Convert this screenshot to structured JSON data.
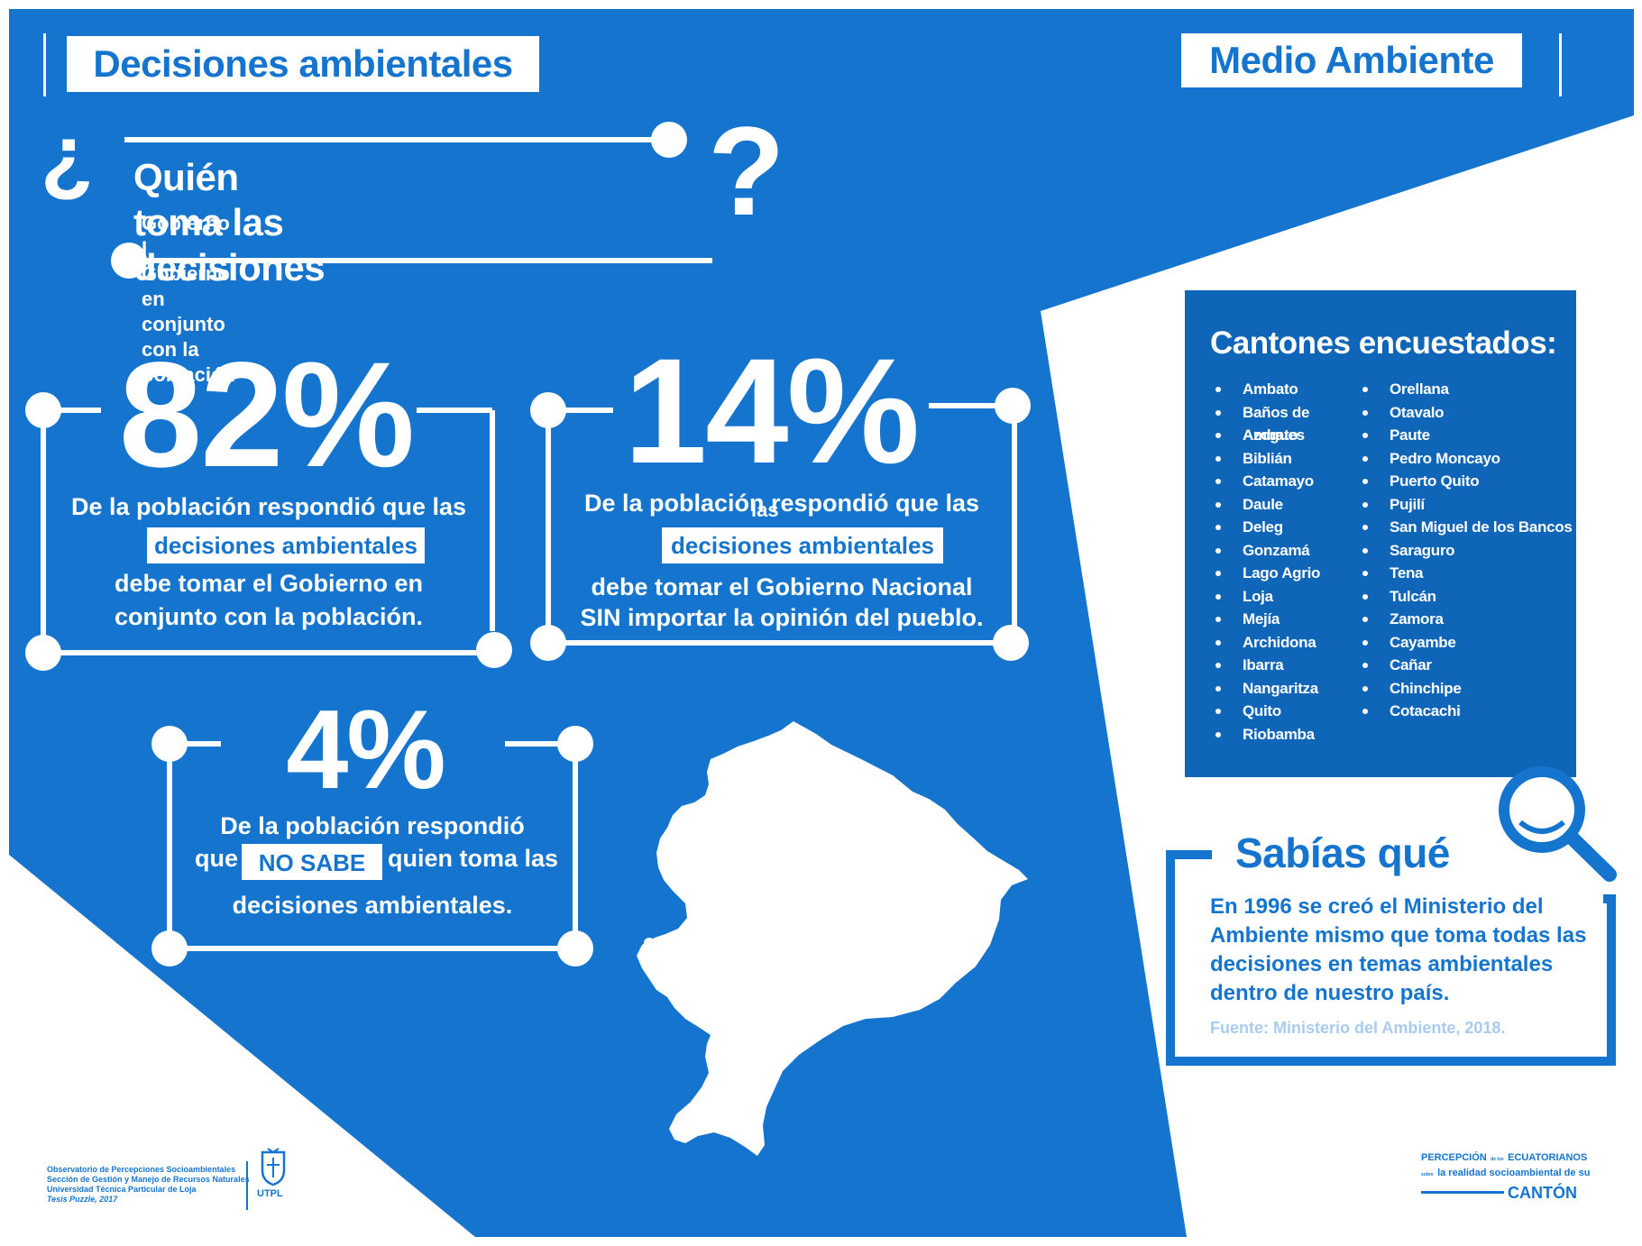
{
  "header": {
    "title": "Decisiones ambientales",
    "category": "Medio  Ambiente"
  },
  "question": {
    "open_mark": "¿",
    "close_mark": "?",
    "title": "Quién toma las decisiones",
    "subtitle": "Gobierno I Gobierno en conjunto con la población"
  },
  "stats": {
    "s82": {
      "value": "82%",
      "line1": "De la población respondió que las",
      "highlight": "decisiones ambientales",
      "line3": "debe tomar el Gobierno en",
      "line4": "conjunto con la población."
    },
    "s14": {
      "value": "14%",
      "line1": "De la población respondió que las",
      "overlap": "las",
      "highlight": "decisiones ambientales",
      "line3": "debe tomar el Gobierno Nacional",
      "line4": "SIN importar la opinión del pueblo."
    },
    "s4": {
      "value": "4%",
      "line1": "De la población respondió",
      "line2_pre": "que",
      "highlight": "NO SABE",
      "line2_post": "quien toma las",
      "line3": "decisiones ambientales."
    }
  },
  "cantones": {
    "title": "Cantones encuestados:",
    "col1": [
      "Ambato",
      "Baños de Ambato",
      "Azogues",
      "Biblián",
      "Catamayo",
      "Daule",
      "Deleg",
      "Gonzamá",
      "Lago Agrio",
      "Loja",
      "Mejía",
      "Archidona",
      "Ibarra",
      "Nangaritza",
      "Quito",
      "Riobamba"
    ],
    "col2": [
      "Orellana",
      "Otavalo",
      "Paute",
      "Pedro Moncayo",
      "Puerto Quito",
      "Pujilí",
      "San Miguel de los Bancos",
      "Saraguro",
      "Tena",
      "Tulcán",
      "Zamora",
      "Cayambe",
      "Cañar",
      "Chinchipe",
      "Cotacachi"
    ]
  },
  "sabias": {
    "title": "Sabías qué",
    "lines": [
      "En 1996 se creó el Ministerio del",
      "Ambiente mismo que toma todas las",
      "decisiones en temas ambientales",
      "dentro de nuestro país."
    ],
    "source": "Fuente: Ministerio del Ambiente, 2018."
  },
  "footer": {
    "lines": [
      "Observatorio de Percepciones Socioambientales",
      "Sección de Gestión y Manejo de Recursos Naturales",
      "Universidad Técnica Particular de Loja",
      "Tesis Puzzle, 2017"
    ],
    "logo_text": "UTPL",
    "brand_line1_a": "PERCEPCIÓN",
    "brand_small_1": "de los",
    "brand_line1_b": "ECUATORIANOS",
    "brand_small_2": "sobre",
    "brand_line2": "la realidad socioambiental de su",
    "brand_line3": "CANTÓN"
  },
  "colors": {
    "primary_blue": "#1575ce",
    "dark_blue": "#0f66b8",
    "white": "#ffffff",
    "source_text": "#a9ccee"
  },
  "icons": {
    "magnifier": "magnifier-icon",
    "map": "ecuador-map-icon",
    "crest": "utpl-crest-icon"
  }
}
